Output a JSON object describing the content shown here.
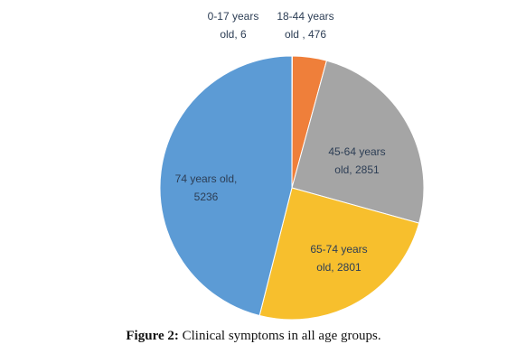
{
  "chart_data": {
    "type": "pie",
    "slices": [
      {
        "label_lines": [
          "0-17 years",
          "old, 6"
        ],
        "category": "0-17 years old",
        "value": 6,
        "color": "#e8742f"
      },
      {
        "label_lines": [
          "18-44 years",
          "old , 476"
        ],
        "category": "18-44 years old",
        "value": 476,
        "color": "#ef7f3a"
      },
      {
        "label_lines": [
          "45-64 years",
          "old, 2851"
        ],
        "category": "45-64 years old",
        "value": 2851,
        "color": "#a5a5a5"
      },
      {
        "label_lines": [
          "65-74 years",
          "old, 2801"
        ],
        "category": "65-74 years old",
        "value": 2801,
        "color": "#f7bf2d"
      },
      {
        "label_lines": [
          "74 years old,",
          "5236"
        ],
        "category": "74 years old",
        "value": 5236,
        "color": "#5c9bd5"
      }
    ],
    "start_angle_deg": 0,
    "direction": "clockwise",
    "label_color": "#2d3e55"
  },
  "caption": {
    "label": "Figure 2:",
    "text": " Clinical symptoms in all age groups."
  }
}
